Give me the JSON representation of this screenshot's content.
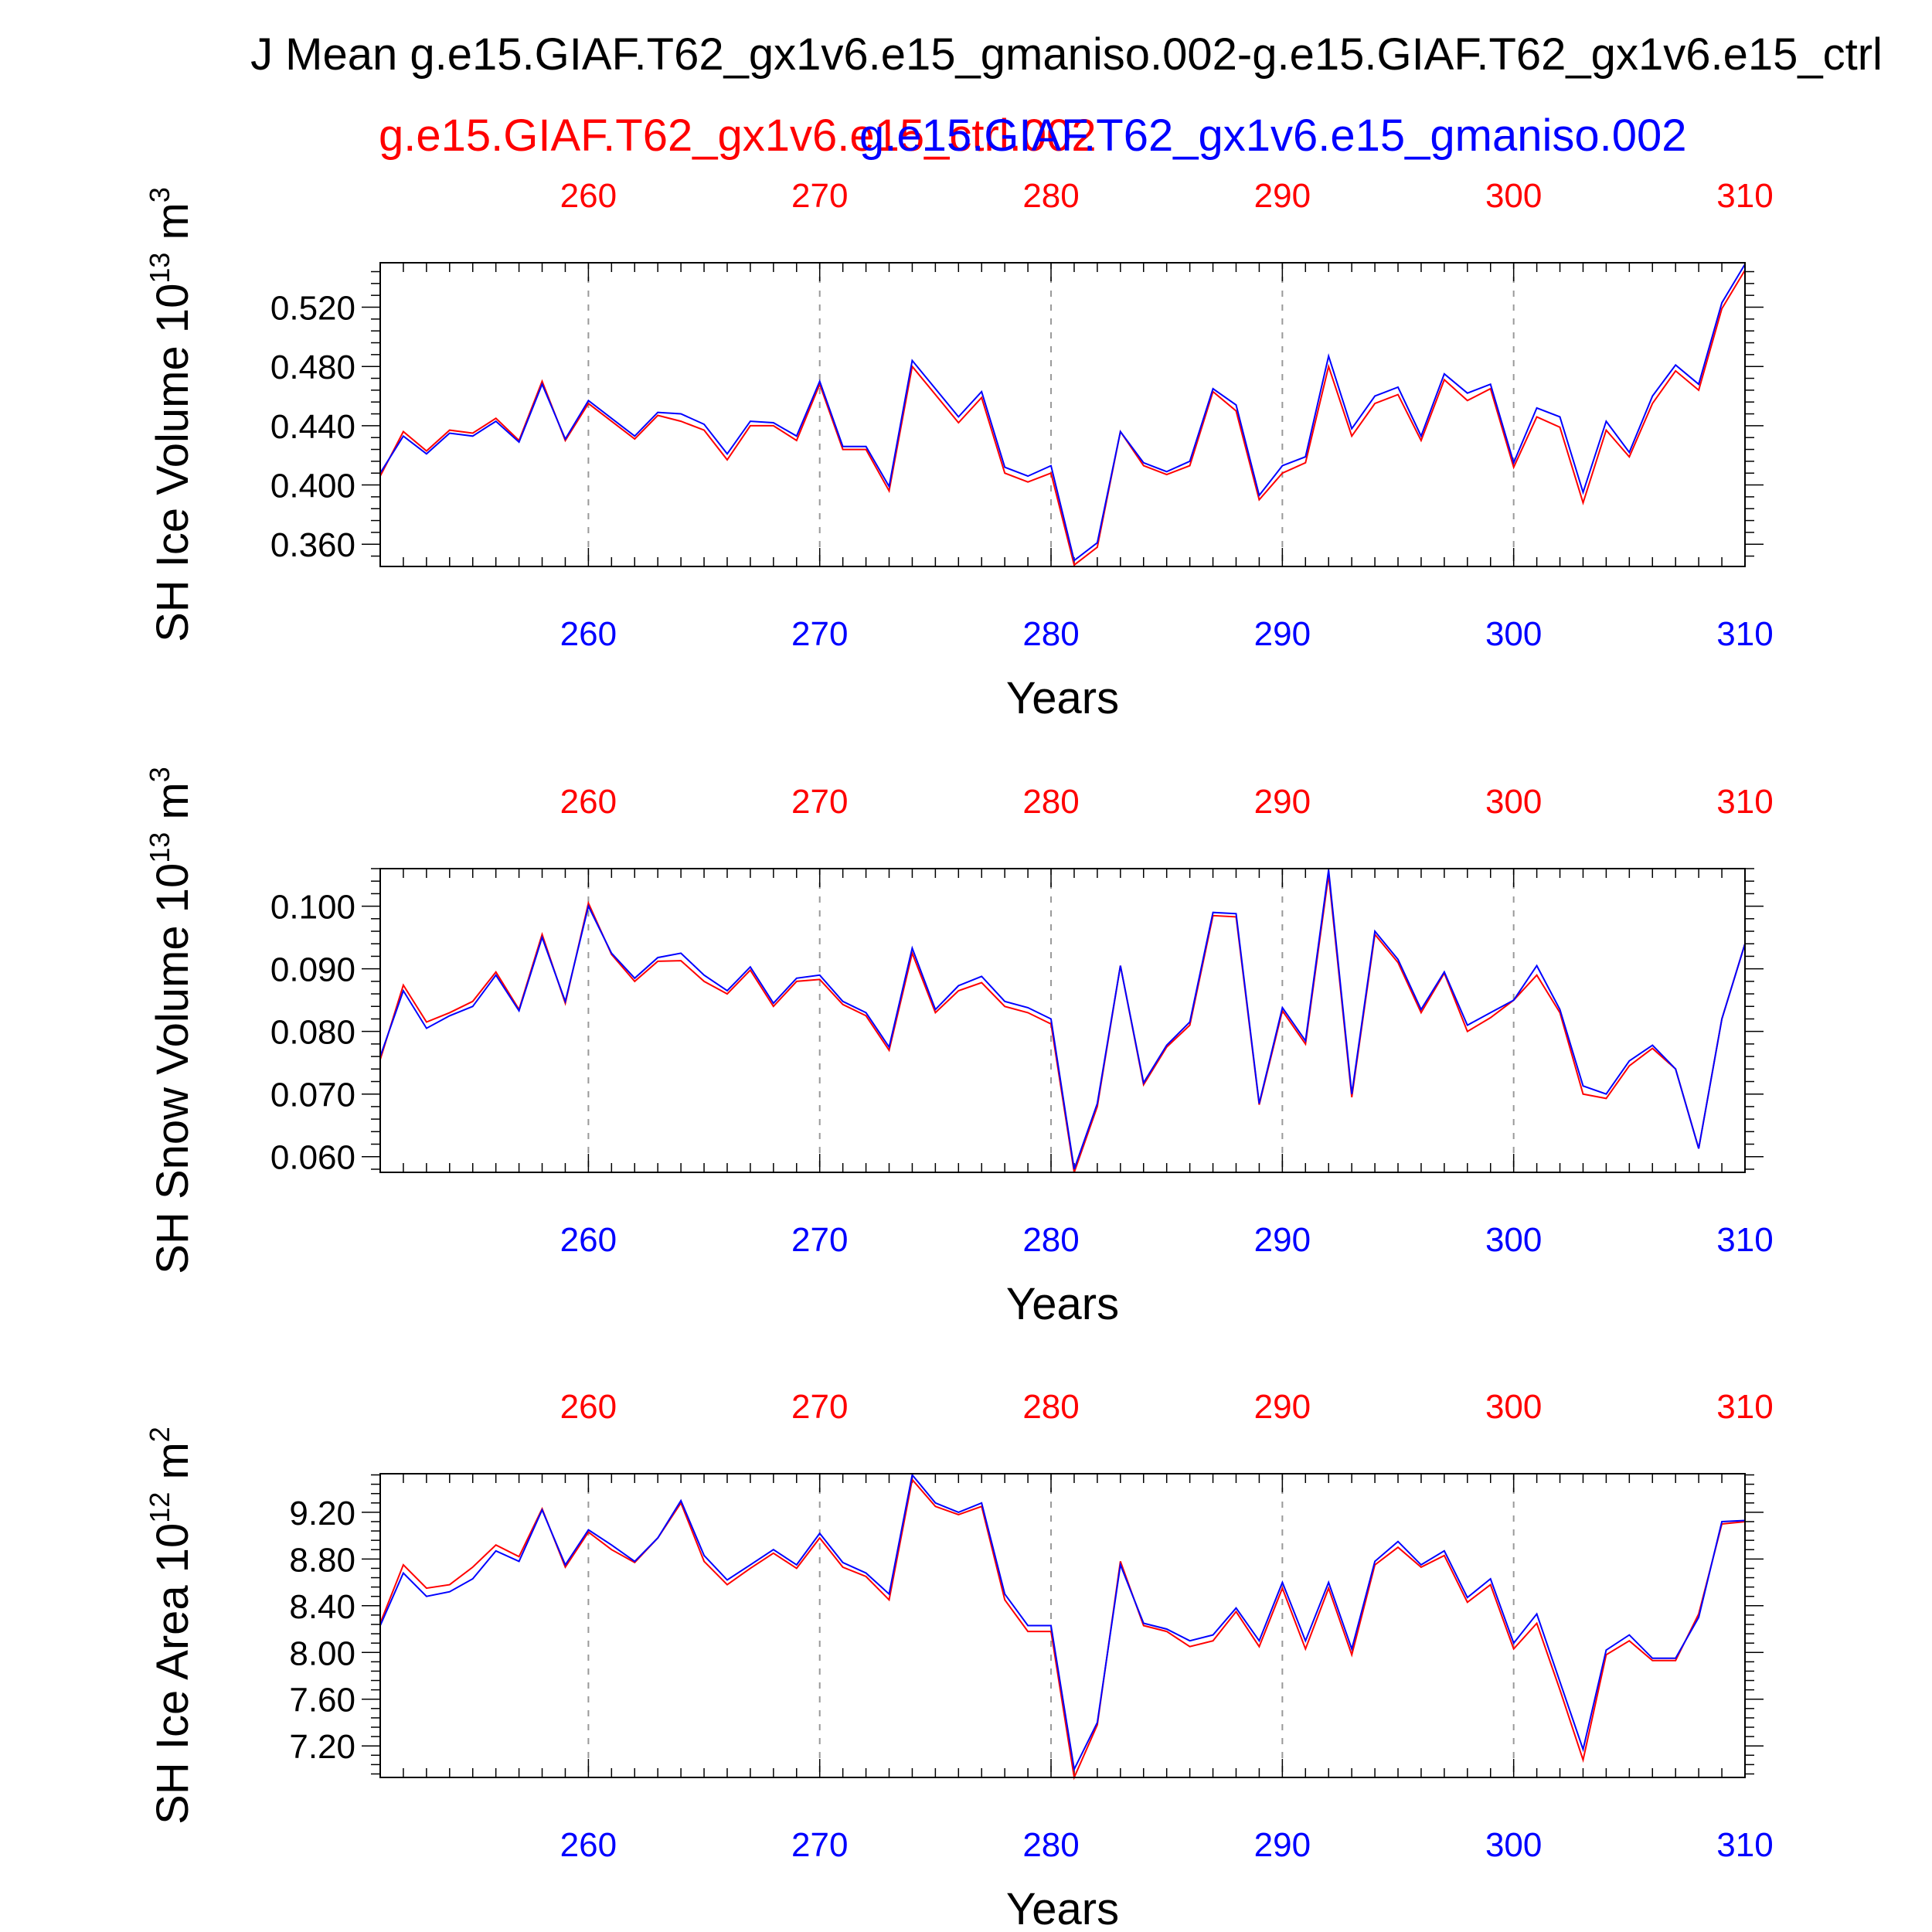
{
  "title": "J Mean g.e15.GIAF.T62_gx1v6.e15_gmaniso.002-g.e15.GIAF.T62_gx1v6.e15_ctrl",
  "legend": {
    "case_red": "g.e15.GIAF.T62_gx1v6.e15_ctrl.002",
    "case_blue": "g.e15.GIAF.T62_gx1v6.e15_gmaniso.002"
  },
  "colors": {
    "red_series": "#ff0000",
    "blue_series": "#0000ff",
    "axis": "#000000",
    "grid": "#999999"
  },
  "chart_data": [
    {
      "type": "line",
      "ylabel": "SH Ice Volume 10",
      "ylabel_exp": "13",
      "ylabel_unit": "m",
      "ylabel_unit_exp": "3",
      "xlabel": "Years",
      "xlim": [
        251,
        310
      ],
      "ylim": [
        0.345,
        0.55
      ],
      "yticks": [
        0.36,
        0.4,
        0.44,
        0.48,
        0.52
      ],
      "yticklabels": [
        "0.360",
        "0.400",
        "0.440",
        "0.480",
        "0.520"
      ],
      "xticks": [
        260,
        270,
        280,
        290,
        300,
        310
      ],
      "xticklabels_top": [
        "260",
        "270",
        "280",
        "290",
        "300",
        "310"
      ],
      "xticklabels_bottom": [
        "260",
        "270",
        "280",
        "290",
        "300",
        "310"
      ],
      "grid_x": true,
      "x": [
        251,
        252,
        253,
        254,
        255,
        256,
        257,
        258,
        259,
        260,
        261,
        262,
        263,
        264,
        265,
        266,
        267,
        268,
        269,
        270,
        271,
        272,
        273,
        274,
        275,
        276,
        277,
        278,
        279,
        280,
        281,
        282,
        283,
        284,
        285,
        286,
        287,
        288,
        289,
        290,
        291,
        292,
        293,
        294,
        295,
        296,
        297,
        298,
        299,
        300,
        301,
        302,
        303,
        304,
        305,
        306,
        307,
        308,
        309,
        310
      ],
      "series": [
        {
          "color": "red",
          "values": [
            0.406,
            0.436,
            0.423,
            0.437,
            0.435,
            0.445,
            0.43,
            0.47,
            0.43,
            0.455,
            0.443,
            0.431,
            0.447,
            0.443,
            0.437,
            0.417,
            0.44,
            0.44,
            0.43,
            0.468,
            0.424,
            0.424,
            0.396,
            0.48,
            0.461,
            0.442,
            0.459,
            0.408,
            0.402,
            0.408,
            0.346,
            0.358,
            0.436,
            0.413,
            0.407,
            0.413,
            0.463,
            0.45,
            0.39,
            0.408,
            0.415,
            0.48,
            0.433,
            0.455,
            0.461,
            0.43,
            0.471,
            0.457,
            0.465,
            0.412,
            0.446,
            0.439,
            0.388,
            0.437,
            0.419,
            0.455,
            0.477,
            0.464,
            0.519,
            0.545
          ]
        },
        {
          "color": "blue",
          "values": [
            0.408,
            0.433,
            0.421,
            0.435,
            0.433,
            0.443,
            0.429,
            0.468,
            0.431,
            0.457,
            0.445,
            0.433,
            0.449,
            0.448,
            0.441,
            0.421,
            0.443,
            0.442,
            0.433,
            0.47,
            0.426,
            0.426,
            0.399,
            0.484,
            0.465,
            0.446,
            0.463,
            0.412,
            0.406,
            0.413,
            0.349,
            0.361,
            0.436,
            0.415,
            0.409,
            0.416,
            0.465,
            0.454,
            0.393,
            0.413,
            0.419,
            0.487,
            0.438,
            0.46,
            0.466,
            0.433,
            0.475,
            0.462,
            0.468,
            0.415,
            0.452,
            0.446,
            0.395,
            0.443,
            0.422,
            0.46,
            0.481,
            0.468,
            0.523,
            0.549
          ]
        }
      ]
    },
    {
      "type": "line",
      "ylabel": "SH Snow Volume 10",
      "ylabel_exp": "13",
      "ylabel_unit": "m",
      "ylabel_unit_exp": "3",
      "xlabel": "Years",
      "xlim": [
        251,
        310
      ],
      "ylim": [
        0.0575,
        0.106
      ],
      "yticks": [
        0.06,
        0.07,
        0.08,
        0.09,
        0.1
      ],
      "yticklabels": [
        "0.060",
        "0.070",
        "0.080",
        "0.090",
        "0.100"
      ],
      "xticks": [
        260,
        270,
        280,
        290,
        300,
        310
      ],
      "xticklabels_top": [
        "260",
        "270",
        "280",
        "290",
        "300",
        "310"
      ],
      "xticklabels_bottom": [
        "260",
        "270",
        "280",
        "290",
        "300",
        "310"
      ],
      "grid_x": true,
      "x": [
        251,
        252,
        253,
        254,
        255,
        256,
        257,
        258,
        259,
        260,
        261,
        262,
        263,
        264,
        265,
        266,
        267,
        268,
        269,
        270,
        271,
        272,
        273,
        274,
        275,
        276,
        277,
        278,
        279,
        280,
        281,
        282,
        283,
        284,
        285,
        286,
        287,
        288,
        289,
        290,
        291,
        292,
        293,
        294,
        295,
        296,
        297,
        298,
        299,
        300,
        301,
        302,
        303,
        304,
        305,
        306,
        307,
        308,
        309,
        310
      ],
      "series": [
        {
          "color": "red",
          "values": [
            0.0755,
            0.0874,
            0.0815,
            0.083,
            0.0848,
            0.0895,
            0.0835,
            0.0955,
            0.0845,
            0.1005,
            0.0923,
            0.088,
            0.0912,
            0.0913,
            0.088,
            0.086,
            0.0898,
            0.084,
            0.088,
            0.0883,
            0.0843,
            0.0825,
            0.077,
            0.0925,
            0.083,
            0.0865,
            0.0878,
            0.084,
            0.083,
            0.0812,
            0.0575,
            0.068,
            0.0905,
            0.0715,
            0.0775,
            0.081,
            0.0985,
            0.0983,
            0.0683,
            0.0833,
            0.078,
            0.105,
            0.0695,
            0.0955,
            0.091,
            0.083,
            0.0893,
            0.08,
            0.0822,
            0.085,
            0.089,
            0.083,
            0.07,
            0.0693,
            0.0745,
            0.0773,
            0.074,
            0.0613,
            0.082,
            0.094
          ]
        },
        {
          "color": "blue",
          "values": [
            0.076,
            0.0865,
            0.0805,
            0.0825,
            0.084,
            0.089,
            0.0833,
            0.095,
            0.0848,
            0.1,
            0.0925,
            0.0885,
            0.0918,
            0.0925,
            0.089,
            0.0865,
            0.0903,
            0.0845,
            0.0885,
            0.089,
            0.0848,
            0.083,
            0.0775,
            0.0933,
            0.0835,
            0.0873,
            0.0888,
            0.0848,
            0.0838,
            0.082,
            0.058,
            0.0685,
            0.0905,
            0.0718,
            0.0778,
            0.0815,
            0.099,
            0.0988,
            0.0685,
            0.0838,
            0.0785,
            0.1058,
            0.07,
            0.096,
            0.0915,
            0.0835,
            0.0895,
            0.081,
            0.083,
            0.085,
            0.0905,
            0.0835,
            0.0713,
            0.07,
            0.0753,
            0.0778,
            0.074,
            0.0613,
            0.082,
            0.094
          ]
        }
      ]
    },
    {
      "type": "line",
      "ylabel": "SH Ice Area 10",
      "ylabel_exp": "12",
      "ylabel_unit": "m",
      "ylabel_unit_exp": "2",
      "xlabel": "Years",
      "xlim": [
        251,
        310
      ],
      "ylim": [
        6.93,
        9.53
      ],
      "yticks": [
        7.2,
        7.6,
        8.0,
        8.4,
        8.8,
        9.2
      ],
      "yticklabels": [
        "7.20",
        "7.60",
        "8.00",
        "8.40",
        "8.80",
        "9.20"
      ],
      "xticks": [
        260,
        270,
        280,
        290,
        300,
        310
      ],
      "xticklabels_top": [
        "260",
        "270",
        "280",
        "290",
        "300",
        "310"
      ],
      "xticklabels_bottom": [
        "260",
        "270",
        "280",
        "290",
        "300",
        "310"
      ],
      "grid_x": true,
      "x": [
        251,
        252,
        253,
        254,
        255,
        256,
        257,
        258,
        259,
        260,
        261,
        262,
        263,
        264,
        265,
        266,
        267,
        268,
        269,
        270,
        271,
        272,
        273,
        274,
        275,
        276,
        277,
        278,
        279,
        280,
        281,
        282,
        283,
        284,
        285,
        286,
        287,
        288,
        289,
        290,
        291,
        292,
        293,
        294,
        295,
        296,
        297,
        298,
        299,
        300,
        301,
        302,
        303,
        304,
        305,
        306,
        307,
        308,
        309,
        310
      ],
      "series": [
        {
          "color": "red",
          "values": [
            8.25,
            8.75,
            8.55,
            8.58,
            8.73,
            8.92,
            8.82,
            9.23,
            8.73,
            9.03,
            8.88,
            8.77,
            8.98,
            9.28,
            8.78,
            8.58,
            8.72,
            8.85,
            8.72,
            8.98,
            8.73,
            8.65,
            8.45,
            9.48,
            9.25,
            9.18,
            9.25,
            8.45,
            8.18,
            8.18,
            6.93,
            7.38,
            8.78,
            8.23,
            8.18,
            8.05,
            8.1,
            8.35,
            8.05,
            8.55,
            8.03,
            8.55,
            7.98,
            8.75,
            8.9,
            8.73,
            8.83,
            8.43,
            8.58,
            8.03,
            8.25,
            7.68,
            7.08,
            7.98,
            8.1,
            7.93,
            7.93,
            8.33,
            9.1,
            9.12
          ]
        },
        {
          "color": "blue",
          "values": [
            8.23,
            8.68,
            8.48,
            8.52,
            8.63,
            8.87,
            8.78,
            9.22,
            8.75,
            9.05,
            8.92,
            8.78,
            8.98,
            9.3,
            8.83,
            8.62,
            8.75,
            8.88,
            8.75,
            9.02,
            8.77,
            8.68,
            8.5,
            9.52,
            9.28,
            9.2,
            9.28,
            8.5,
            8.23,
            8.23,
            7.0,
            7.4,
            8.75,
            8.25,
            8.2,
            8.1,
            8.15,
            8.38,
            8.1,
            8.6,
            8.1,
            8.6,
            8.03,
            8.78,
            8.95,
            8.75,
            8.87,
            8.47,
            8.63,
            8.08,
            8.33,
            7.75,
            7.17,
            8.02,
            8.15,
            7.95,
            7.95,
            8.3,
            9.12,
            9.13
          ]
        }
      ]
    }
  ]
}
